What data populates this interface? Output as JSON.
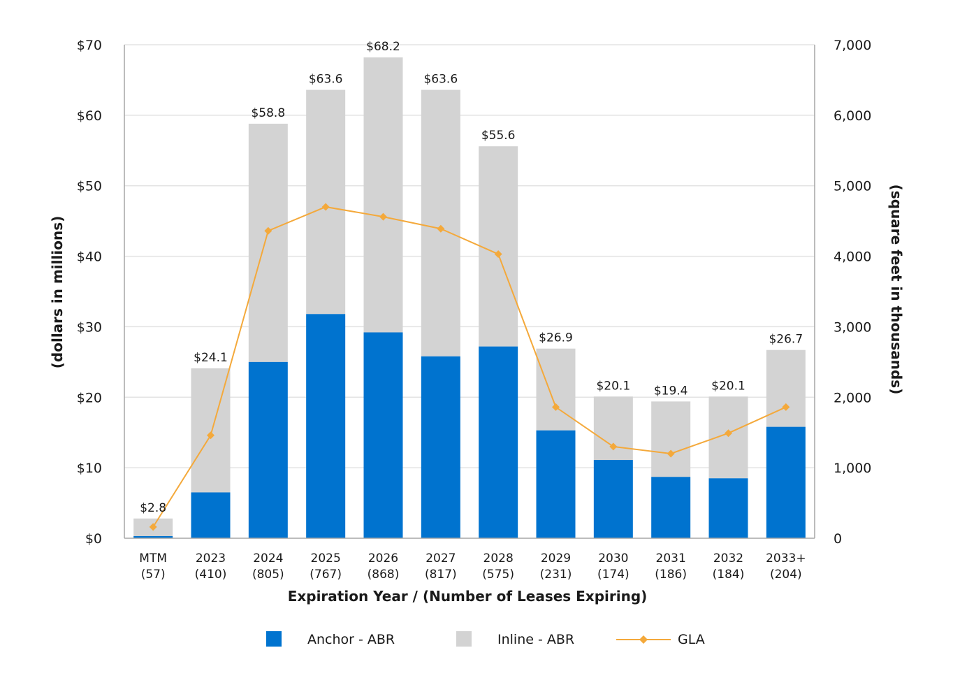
{
  "chart_data": {
    "type": "bar",
    "stacked": true,
    "categories": [
      "MTM",
      "2023",
      "2024",
      "2025",
      "2026",
      "2027",
      "2028",
      "2029",
      "2030",
      "2031",
      "2032",
      "2033+"
    ],
    "category_counts": [
      "(57)",
      "(410)",
      "(805)",
      "(767)",
      "(868)",
      "(817)",
      "(575)",
      "(231)",
      "(174)",
      "(186)",
      "(184)",
      "(204)"
    ],
    "series": [
      {
        "name": "Anchor - ABR",
        "kind": "bar",
        "axis": "left",
        "color": "#0073cf",
        "values": [
          0.3,
          6.5,
          25.0,
          31.8,
          29.2,
          25.8,
          27.2,
          15.3,
          11.1,
          8.7,
          8.5,
          15.8
        ]
      },
      {
        "name": "Inline - ABR",
        "kind": "bar",
        "axis": "left",
        "color": "#d3d3d3",
        "values": [
          2.5,
          17.6,
          33.8,
          31.8,
          39.0,
          37.8,
          28.4,
          11.6,
          9.0,
          10.7,
          11.6,
          10.9
        ]
      },
      {
        "name": "GLA",
        "kind": "line",
        "axis": "right",
        "color": "#f4a93b",
        "values": [
          160,
          1460,
          4360,
          4700,
          4560,
          4390,
          4030,
          1860,
          1300,
          1200,
          1490,
          1860
        ]
      }
    ],
    "totals": [
      2.8,
      24.1,
      58.8,
      63.6,
      68.2,
      63.6,
      55.6,
      26.9,
      20.1,
      19.4,
      20.1,
      26.7
    ],
    "total_labels": [
      "$2.8",
      "$24.1",
      "$58.8",
      "$63.6",
      "$68.2",
      "$63.6",
      "$55.6",
      "$26.9",
      "$20.1",
      "$19.4",
      "$20.1",
      "$26.7"
    ],
    "left_axis": {
      "label": "(dollars in millions)",
      "ylim": [
        0,
        70
      ],
      "ticks": [
        0,
        10,
        20,
        30,
        40,
        50,
        60,
        70
      ],
      "tick_labels": [
        "$0",
        "$10",
        "$20",
        "$30",
        "$40",
        "$50",
        "$60",
        "$70"
      ]
    },
    "right_axis": {
      "label": "(square feet in thousands)",
      "ylim": [
        0,
        7000
      ],
      "ticks": [
        0,
        1000,
        2000,
        3000,
        4000,
        5000,
        6000,
        7000
      ],
      "tick_labels": [
        "0",
        "1,000",
        "2,000",
        "3,000",
        "4,000",
        "5,000",
        "6,000",
        "7,000"
      ]
    },
    "xlabel": "Expiration Year / (Number of Leases Expiring)",
    "grid": true,
    "legend_position": "bottom"
  }
}
